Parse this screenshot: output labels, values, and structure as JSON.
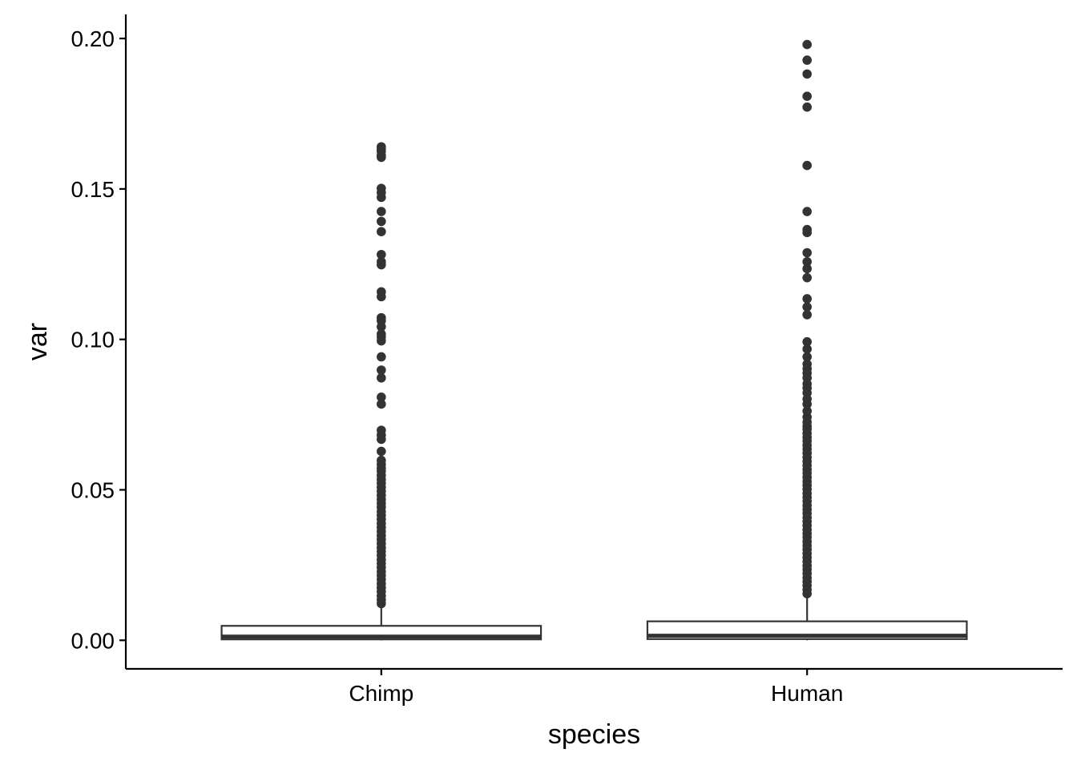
{
  "chart_data": {
    "type": "box",
    "xlabel": "species",
    "ylabel": "var",
    "ylim": [
      -0.0095,
      0.208
    ],
    "yticks": [
      0.0,
      0.05,
      0.1,
      0.15,
      0.2
    ],
    "ytick_labels": [
      "0.00",
      "0.05",
      "0.10",
      "0.15",
      "0.20"
    ],
    "grid": false,
    "legend": "none",
    "categories": [
      "Chimp",
      "Human"
    ],
    "boxes": [
      {
        "category": "Chimp",
        "min": 0.0,
        "q1": 0.0003,
        "median": 0.0012,
        "q3": 0.0048,
        "whisker_high": 0.0115,
        "outliers": [
          0.164,
          0.1632,
          0.1625,
          0.1612,
          0.1605,
          0.1502,
          0.1488,
          0.1472,
          0.1425,
          0.1392,
          0.1358,
          0.1282,
          0.1258,
          0.1248,
          0.1158,
          0.1142,
          0.1072,
          0.1062,
          0.1042,
          0.1018,
          0.1008,
          0.0995,
          0.0942,
          0.0898,
          0.0872,
          0.0808,
          0.0785,
          0.0698,
          0.0682,
          0.0668,
          0.0628,
          0.0598,
          0.0585,
          0.0572,
          0.0562,
          0.0548,
          0.0535,
          0.0522,
          0.0508,
          0.0495,
          0.0482,
          0.0468,
          0.0455,
          0.0442,
          0.0428,
          0.0415,
          0.0402,
          0.0388,
          0.0375,
          0.0362,
          0.0348,
          0.0335,
          0.0322,
          0.0308,
          0.0295,
          0.0282,
          0.0268,
          0.0255,
          0.0242,
          0.0228,
          0.0215,
          0.0202,
          0.0188,
          0.0175,
          0.0162,
          0.0148,
          0.0135,
          0.0122
        ]
      },
      {
        "category": "Human",
        "min": 0.0,
        "q1": 0.0004,
        "median": 0.0015,
        "q3": 0.0063,
        "whisker_high": 0.015,
        "outliers": [
          0.198,
          0.1928,
          0.1882,
          0.1808,
          0.1772,
          0.1578,
          0.1425,
          0.1365,
          0.1355,
          0.1288,
          0.1258,
          0.1235,
          0.1205,
          0.1135,
          0.1108,
          0.1082,
          0.0992,
          0.0968,
          0.0942,
          0.0918,
          0.0902,
          0.0888,
          0.0872,
          0.0852,
          0.0838,
          0.0822,
          0.0802,
          0.0785,
          0.0762,
          0.0742,
          0.0725,
          0.0712,
          0.0702,
          0.0688,
          0.0675,
          0.0662,
          0.0648,
          0.0635,
          0.0622,
          0.0608,
          0.0595,
          0.0582,
          0.0568,
          0.0555,
          0.0542,
          0.0528,
          0.0515,
          0.0502,
          0.0488,
          0.0475,
          0.0462,
          0.0448,
          0.0435,
          0.0422,
          0.0408,
          0.0395,
          0.0382,
          0.0368,
          0.0355,
          0.0342,
          0.0328,
          0.0315,
          0.0302,
          0.0288,
          0.0275,
          0.0262,
          0.0248,
          0.0235,
          0.0222,
          0.0208,
          0.0195,
          0.0182,
          0.0168,
          0.0155
        ]
      }
    ],
    "colors": {
      "box_outline": "#333333",
      "box_fill": "#ffffff",
      "outlier": "#333333",
      "axis": "#000000"
    }
  }
}
